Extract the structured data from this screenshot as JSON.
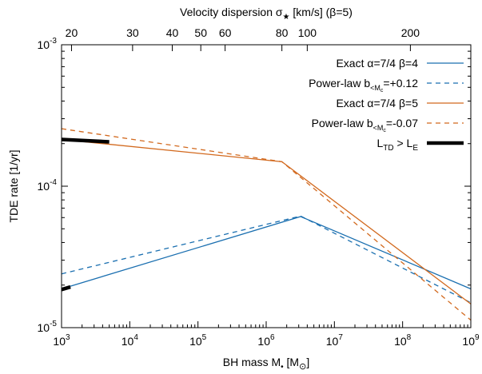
{
  "chart_data": {
    "type": "line",
    "xscale": "log",
    "yscale": "log",
    "xlim": [
      1000,
      1000000000
    ],
    "ylim": [
      1e-05,
      0.001
    ],
    "xlabel": {
      "base": "BH mass M",
      "sub": "•",
      "tail": " [M",
      "sun": "⊙",
      "close": "]"
    },
    "ylabel": "TDE rate [1/yr]",
    "top_axis": {
      "label_prefix": "Velocity dispersion σ",
      "label_sub": "★",
      "label_suffix": " [km/s] (β=5)",
      "ticks": [
        {
          "value": 20,
          "mass": 1400
        },
        {
          "value": 30,
          "mass": 11000
        },
        {
          "value": 40,
          "mass": 42000
        },
        {
          "value": 50,
          "mass": 110000
        },
        {
          "value": 60,
          "mass": 250000
        },
        {
          "value": 80,
          "mass": 1700000
        },
        {
          "value": 100,
          "mass": 4000000
        },
        {
          "value": 200,
          "mass": 130000000
        }
      ]
    },
    "x_ticks": [
      {
        "value": 1000,
        "base": "10",
        "exp": "3"
      },
      {
        "value": 10000,
        "base": "10",
        "exp": "4"
      },
      {
        "value": 100000,
        "base": "10",
        "exp": "5"
      },
      {
        "value": 1000000,
        "base": "10",
        "exp": "6"
      },
      {
        "value": 10000000,
        "base": "10",
        "exp": "7"
      },
      {
        "value": 100000000,
        "base": "10",
        "exp": "8"
      },
      {
        "value": 1000000000,
        "base": "10",
        "exp": "9"
      }
    ],
    "y_ticks": [
      {
        "value": 1e-05,
        "base": "10",
        "exp": "-5"
      },
      {
        "value": 0.0001,
        "base": "10",
        "exp": "-4"
      },
      {
        "value": 0.001,
        "base": "10",
        "exp": "-3"
      }
    ],
    "series": [
      {
        "name_parts": [
          "Exact α=7/4 β=4"
        ],
        "color": "#1a6fb0",
        "dash": "solid",
        "points": [
          [
            1000,
            1.88e-05
          ],
          [
            3200000,
            6.1e-05
          ],
          [
            1000000000,
            1.88e-05
          ]
        ]
      },
      {
        "name_parts": [
          "Power-law b",
          "<M",
          "c",
          "=+0.12"
        ],
        "color": "#1a6fb0",
        "dash": "dashed",
        "points": [
          [
            1000,
            2.4e-05
          ],
          [
            3200000,
            6.15e-05
          ],
          [
            1000000000,
            1.5e-05
          ]
        ]
      },
      {
        "name_parts": [
          "Exact α=7/4 β=5"
        ],
        "color": "#d2691e",
        "dash": "solid",
        "points": [
          [
            1000,
            0.000214
          ],
          [
            1700000,
            0.000149
          ],
          [
            1000000000,
            1.47e-05
          ]
        ]
      },
      {
        "name_parts": [
          "Power-law b",
          "<M",
          "c",
          "=-0.07"
        ],
        "color": "#d2691e",
        "dash": "dashed",
        "points": [
          [
            1000,
            0.000255
          ],
          [
            1700000,
            0.000149
          ],
          [
            1000000000,
            1.13e-05
          ]
        ]
      },
      {
        "name_parts": [
          "L",
          "TD",
          " > L",
          "E"
        ],
        "color": "#000000",
        "dash": "thick",
        "segments": [
          [
            [
              1000,
              0.000214
            ],
            [
              5000,
              0.000206
            ]
          ],
          [
            [
              1000,
              1.86e-05
            ],
            [
              1350,
              1.94e-05
            ]
          ]
        ]
      }
    ],
    "legend_position": "top-right",
    "grid": false
  }
}
